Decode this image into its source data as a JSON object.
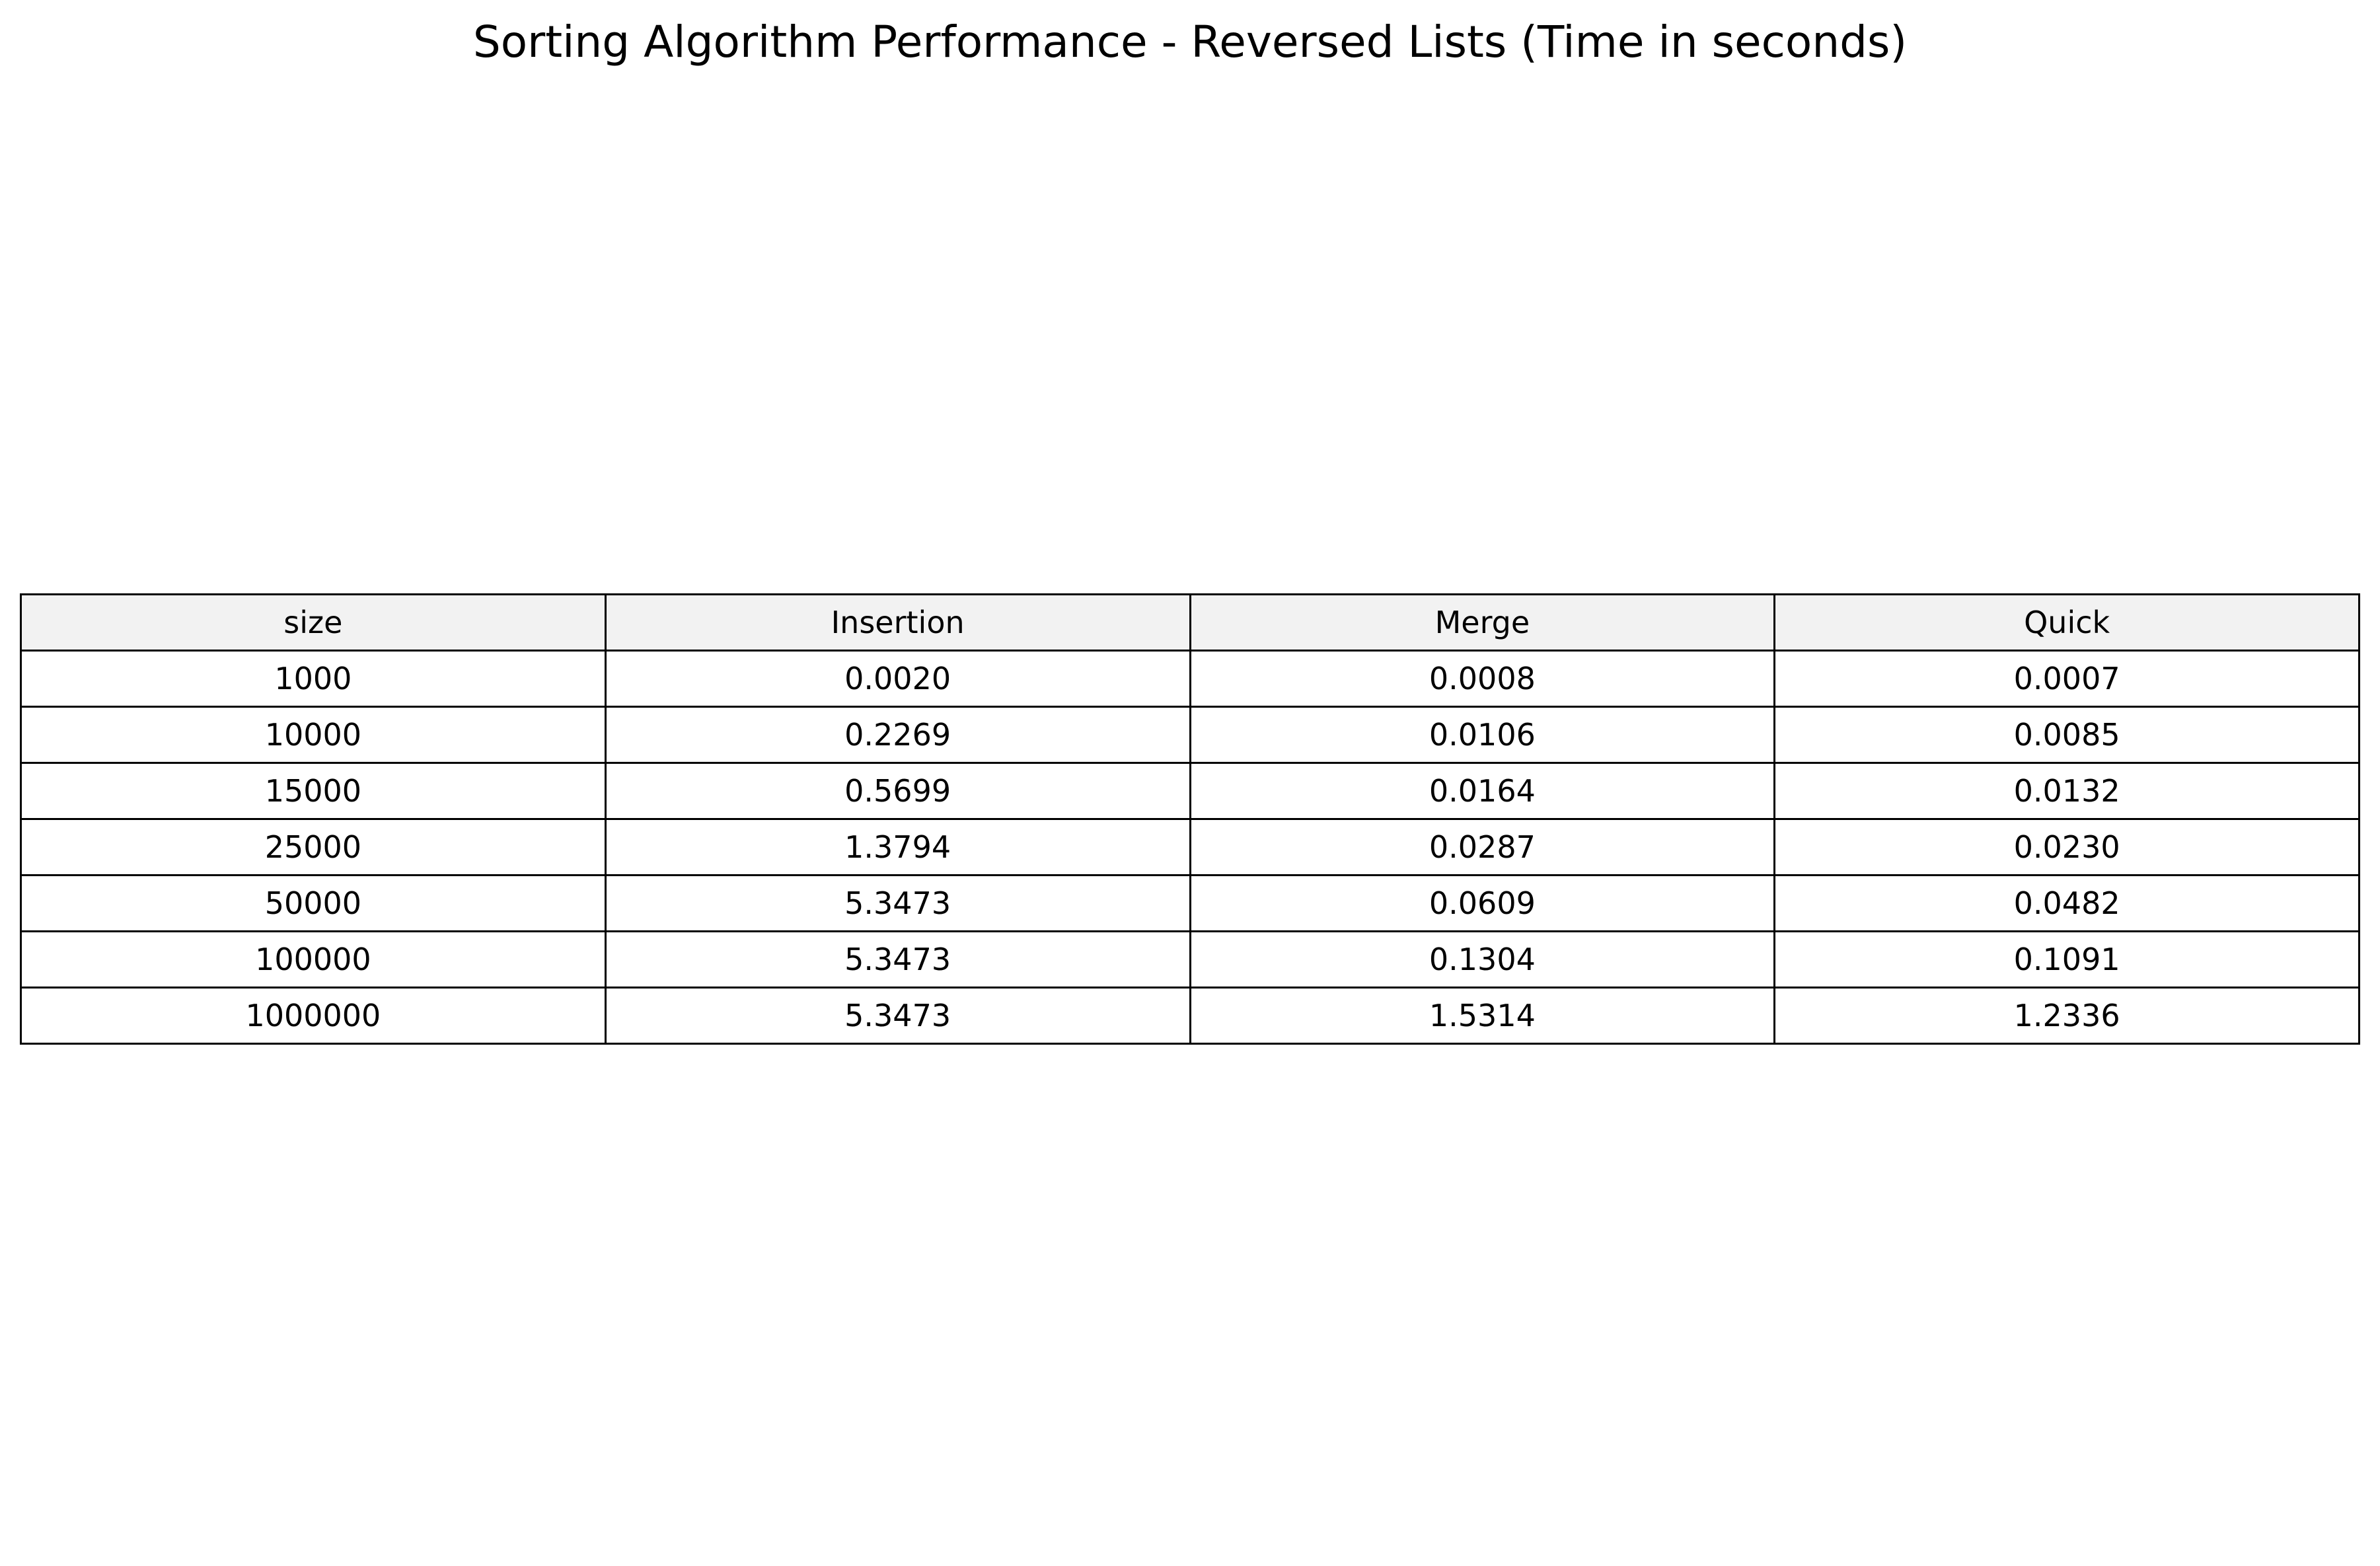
{
  "chart_data": {
    "type": "table",
    "title": "Sorting Algorithm Performance - Reversed Lists (Time in seconds)",
    "columns": [
      "size",
      "Insertion",
      "Merge",
      "Quick"
    ],
    "rows": [
      [
        "1000",
        "0.0020",
        "0.0008",
        "0.0007"
      ],
      [
        "10000",
        "0.2269",
        "0.0106",
        "0.0085"
      ],
      [
        "15000",
        "0.5699",
        "0.0164",
        "0.0132"
      ],
      [
        "25000",
        "1.3794",
        "0.0287",
        "0.0230"
      ],
      [
        "50000",
        "5.3473",
        "0.0609",
        "0.0482"
      ],
      [
        "100000",
        "5.3473",
        "0.1304",
        "0.1091"
      ],
      [
        "1000000",
        "5.3473",
        "1.5314",
        "1.2336"
      ]
    ],
    "colors": {
      "header_background": "#f2f2f2",
      "cell_background": "#ffffff",
      "border": "#000000"
    }
  }
}
